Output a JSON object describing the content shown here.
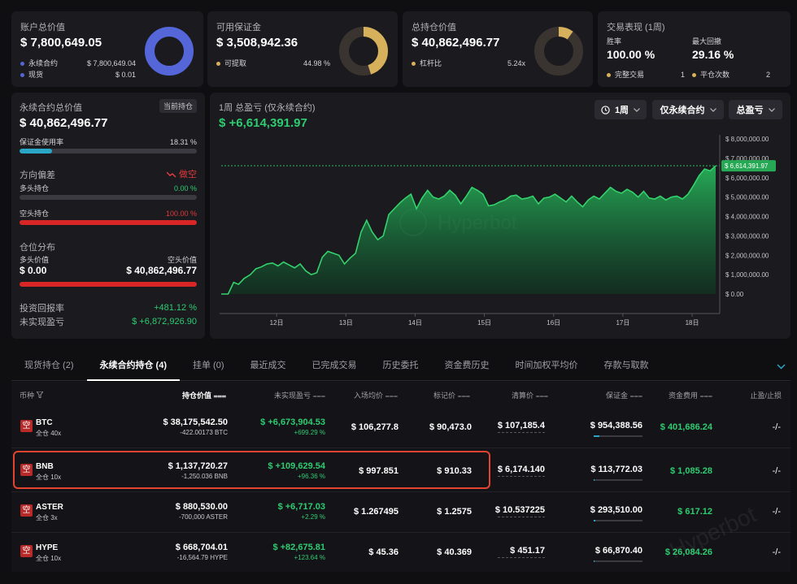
{
  "colors": {
    "accent_green": "#2ecc71",
    "accent_red": "#e23b3b",
    "blue": "#5566d8",
    "gold": "#d6b05a",
    "teal": "#2aa6c6"
  },
  "summary": {
    "account": {
      "title": "账户总价值",
      "value": "$ 7,800,649.05",
      "rows": [
        {
          "label": "永续合约",
          "value": "$ 7,800,649.04"
        },
        {
          "label": "现货",
          "value": "$ 0.01"
        }
      ]
    },
    "margin": {
      "title": "可用保证金",
      "value": "$ 3,508,942.36",
      "rows": [
        {
          "label": "可提取",
          "value": "44.98 %"
        }
      ],
      "pct": 0.4498
    },
    "position": {
      "title": "总持仓价值",
      "value": "$ 40,862,496.77",
      "rows": [
        {
          "label": "杠杆比",
          "value": "5.24x"
        }
      ],
      "pct": 0.1
    },
    "perf": {
      "title": "交易表现 (1周)",
      "win_label": "胜率",
      "win_value": "100.00 %",
      "dd_label": "最大回撤",
      "dd_value": "29.16 %",
      "done_label": "完整交易",
      "done_value": "1",
      "flat_label": "平仓次数",
      "flat_value": "2"
    }
  },
  "perp": {
    "title": "永续合约总价值",
    "tag": "当前持仓",
    "value": "$ 40,862,496.77",
    "margin_usage_label": "保证金使用率",
    "margin_usage_value": "18.31 %",
    "margin_usage": 0.1831,
    "bias_label": "方向偏差",
    "bias_value": "做空",
    "long_label": "多头持仓",
    "long_value": "0.00 %",
    "short_label": "空头持仓",
    "short_value": "100.00 %",
    "dist_label": "仓位分布",
    "long_val_label": "多头价值",
    "short_val_label": "空头价值",
    "long_val": "$ 0.00",
    "short_val": "$ 40,862,496.77",
    "roi_label": "投资回报率",
    "roi_value": "+481.12 %",
    "upnl_label": "未实现盈亏",
    "upnl_value": "$ +6,872,926.90"
  },
  "chart_header": {
    "title": "1周 总盈亏 (仅永续合约)",
    "value": "$ +6,614,391.97",
    "filter_period": "1周",
    "filter_scope": "仅永续合约",
    "filter_metric": "总盈亏",
    "watermark": "Hyperbot"
  },
  "chart_data": {
    "type": "area",
    "title": "1周 总盈亏 (仅永续合约)",
    "xlabel": "",
    "ylabel": "",
    "ylim": [
      0,
      8000000
    ],
    "y_ticks": [
      "$ 8,000,000.00",
      "$ 7,000,000.00",
      "$ 6,000,000.00",
      "$ 5,000,000.00",
      "$ 4,000,000.00",
      "$ 3,000,000.00",
      "$ 2,000,000.00",
      "$ 1,000,000.00",
      "$ 0.00"
    ],
    "x_ticks": [
      "12日",
      "13日",
      "14日",
      "15日",
      "16日",
      "17日",
      "18日"
    ],
    "x_ticks_pos": [
      0.8,
      1.8,
      2.8,
      3.8,
      4.8,
      5.8,
      6.8
    ],
    "current_label": "$ 6,614,391.97",
    "current_value": 6614391.97,
    "x": [
      0,
      0.1,
      0.18,
      0.25,
      0.33,
      0.42,
      0.5,
      0.58,
      0.66,
      0.74,
      0.82,
      0.9,
      0.98,
      1.06,
      1.14,
      1.22,
      1.3,
      1.38,
      1.46,
      1.54,
      1.62,
      1.7,
      1.78,
      1.86,
      1.94,
      2.02,
      2.1,
      2.18,
      2.26,
      2.34,
      2.42,
      2.5,
      2.58,
      2.66,
      2.74,
      2.82,
      2.9,
      2.98,
      3.06,
      3.14,
      3.22,
      3.3,
      3.38,
      3.46,
      3.54,
      3.62,
      3.7,
      3.78,
      3.86,
      3.94,
      4.02,
      4.1,
      4.18,
      4.26,
      4.34,
      4.42,
      4.5,
      4.58,
      4.66,
      4.74,
      4.82,
      4.9,
      4.98,
      5.06,
      5.14,
      5.22,
      5.3,
      5.38,
      5.46,
      5.54,
      5.62,
      5.7,
      5.78,
      5.86,
      5.94,
      6.02,
      6.1,
      6.18,
      6.26,
      6.34,
      6.42,
      6.5,
      6.58,
      6.66,
      6.74,
      6.82,
      6.9,
      6.98,
      7.06,
      7.14
    ],
    "values": [
      0,
      0,
      600000,
      500000,
      800000,
      1000000,
      1300000,
      1400000,
      1550000,
      1600000,
      1450000,
      1650000,
      1500000,
      1350000,
      1550000,
      1200000,
      1000000,
      1100000,
      1900000,
      2200000,
      2100000,
      2000000,
      1550000,
      1850000,
      2100000,
      3200000,
      3800000,
      3200000,
      2800000,
      3000000,
      4100000,
      4400000,
      4700000,
      4950000,
      5150000,
      4400000,
      4950000,
      5350000,
      5000000,
      4900000,
      5050000,
      5350000,
      5100000,
      4650000,
      5050000,
      5500000,
      5350000,
      5150000,
      4550000,
      4600000,
      4750000,
      4850000,
      5050000,
      5100000,
      4900000,
      4950000,
      5050000,
      4650000,
      4950000,
      5000000,
      5150000,
      4950000,
      4750000,
      5050000,
      4750000,
      4500000,
      4850000,
      5050000,
      4900000,
      5200000,
      5500000,
      5300000,
      5200000,
      5400000,
      5250000,
      5000000,
      5300000,
      4950000,
      4900000,
      5050000,
      4850000,
      5000000,
      5050000,
      4900000,
      5150000,
      5600000,
      6100000,
      6450000,
      6350000,
      6614391.97
    ],
    "grid": false,
    "legend": "none"
  },
  "tabs": [
    {
      "label": "现货持仓 (2)"
    },
    {
      "label": "永续合约持仓 (4)"
    },
    {
      "label": "挂单 (0)"
    },
    {
      "label": "最近成交"
    },
    {
      "label": "已完成交易"
    },
    {
      "label": "历史委托"
    },
    {
      "label": "资金费历史"
    },
    {
      "label": "时间加权平均价"
    },
    {
      "label": "存款与取款"
    }
  ],
  "table": {
    "headers": [
      "币种",
      "持仓价值",
      "未实现盈亏",
      "入场均价",
      "标记价",
      "清算价",
      "保证金",
      "资金费用",
      "止盈/止损"
    ],
    "rows": [
      {
        "side": "空",
        "coin": "BTC",
        "mode": "全仓 40x",
        "value": "$ 38,175,542.50",
        "size": "-422.00173 BTC",
        "upnl": "$ +6,673,904.53",
        "upnl_pct": "+699.29 %",
        "entry": "$ 106,277.8",
        "mark": "$ 90,473.0",
        "liq": "$ 107,185.4",
        "margin": "$ 954,388.56",
        "margin_fill": 0.12,
        "funding": "$ 401,686.24",
        "tpsl": "-/-"
      },
      {
        "side": "空",
        "coin": "BNB",
        "mode": "全仓 10x",
        "value": "$ 1,137,720.27",
        "size": "-1,250.036 BNB",
        "upnl": "$ +109,629.54",
        "upnl_pct": "+96.36 %",
        "entry": "$ 997.851",
        "mark": "$ 910.33",
        "liq": "$ 6,174.140",
        "margin": "$ 113,772.03",
        "margin_fill": 0.02,
        "funding": "$ 1,085.28",
        "tpsl": "-/-"
      },
      {
        "side": "空",
        "coin": "ASTER",
        "mode": "全仓 3x",
        "value": "$ 880,530.00",
        "size": "-700,000 ASTER",
        "upnl": "$ +6,717.03",
        "upnl_pct": "+2.29 %",
        "entry": "$ 1.267495",
        "mark": "$ 1.2575",
        "liq": "$ 10.537225",
        "margin": "$ 293,510.00",
        "margin_fill": 0.04,
        "funding": "$ 617.12",
        "tpsl": "-/-"
      },
      {
        "side": "空",
        "coin": "HYPE",
        "mode": "全仓 10x",
        "value": "$ 668,704.01",
        "size": "-16,564.79 HYPE",
        "upnl": "$ +82,675.81",
        "upnl_pct": "+123.64 %",
        "entry": "$ 45.36",
        "mark": "$ 40.369",
        "liq": "$ 451.17",
        "margin": "$ 66,870.40",
        "margin_fill": 0.02,
        "funding": "$ 26,084.26",
        "tpsl": "-/-"
      }
    ]
  }
}
